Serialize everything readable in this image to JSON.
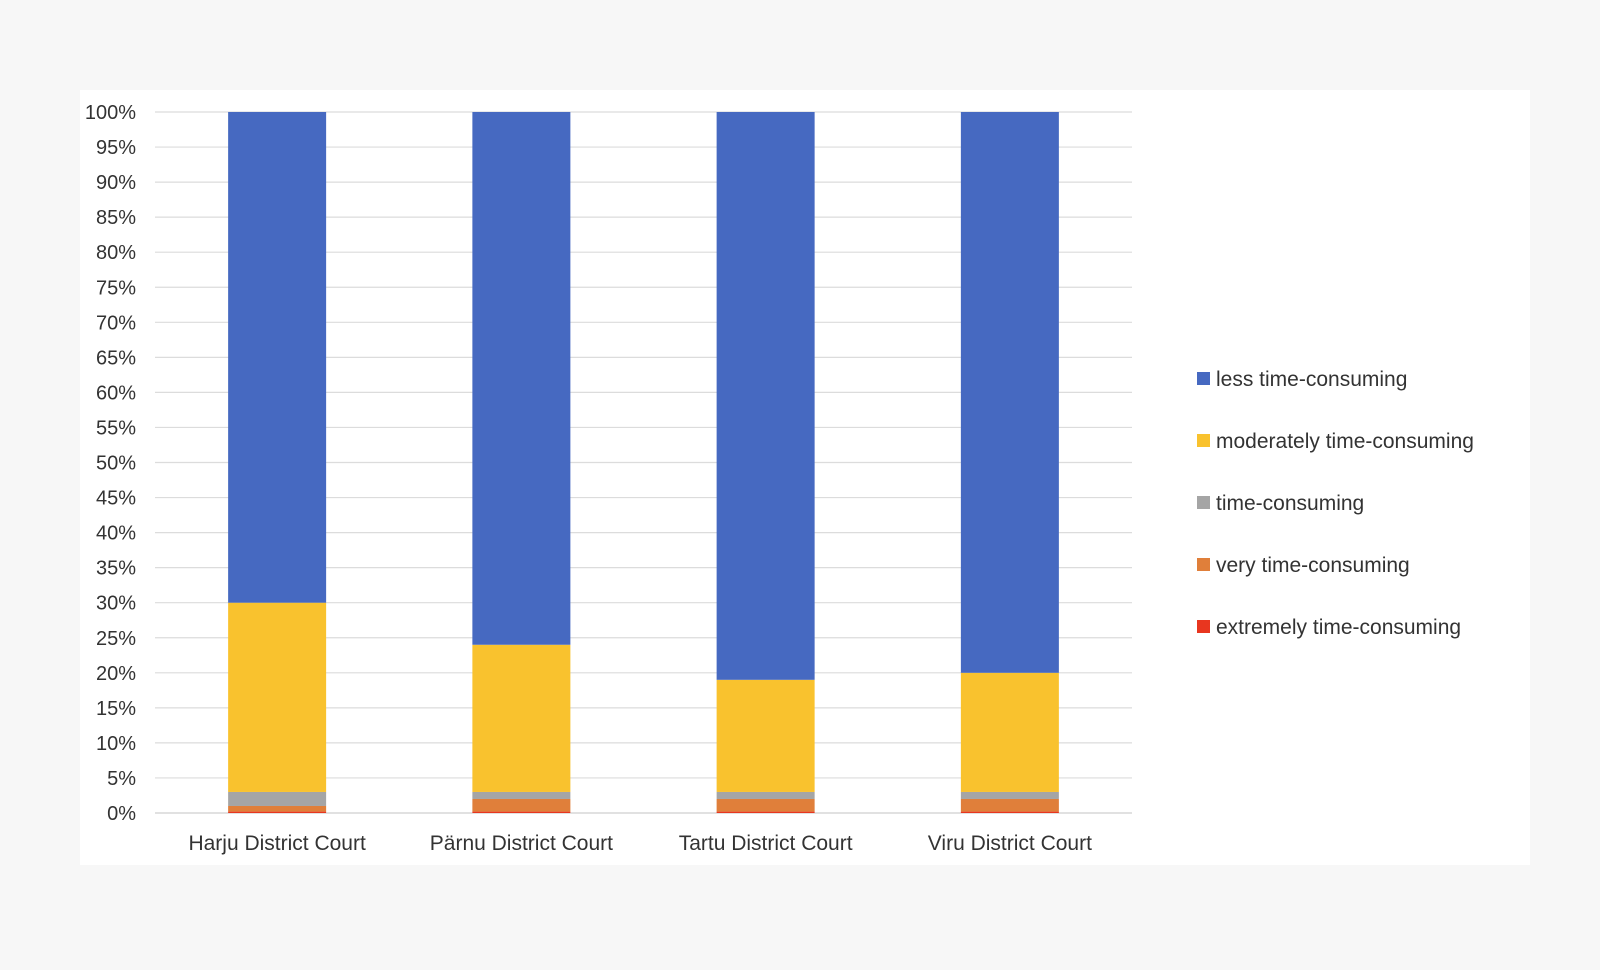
{
  "chart_data": {
    "type": "bar",
    "stacked": true,
    "title": "",
    "xlabel": "",
    "ylabel": "",
    "categories": [
      "Harju District Court",
      "Pärnu District Court",
      "Tartu District Court",
      "Viru District Court"
    ],
    "ylim": [
      0,
      100
    ],
    "y_ticks": [
      "0%",
      "5%",
      "10%",
      "15%",
      "20%",
      "25%",
      "30%",
      "35%",
      "40%",
      "45%",
      "50%",
      "55%",
      "60%",
      "65%",
      "70%",
      "75%",
      "80%",
      "85%",
      "90%",
      "95%",
      "100%"
    ],
    "grid": true,
    "legend_position": "right",
    "series": [
      {
        "name": "extremely time-consuming",
        "color": "#e8361f",
        "values": [
          0.2,
          0.2,
          0.2,
          0.2
        ]
      },
      {
        "name": "very time-consuming",
        "color": "#e07f3a",
        "values": [
          0.8,
          1.8,
          1.8,
          1.8
        ]
      },
      {
        "name": "time-consuming",
        "color": "#a5a5a5",
        "values": [
          2.0,
          1.0,
          1.0,
          1.0
        ]
      },
      {
        "name": "moderately time-consuming",
        "color": "#f9c22e",
        "values": [
          27.0,
          21.0,
          16.0,
          17.0
        ]
      },
      {
        "name": "less time-consuming",
        "color": "#4669c1",
        "values": [
          70.0,
          76.0,
          81.0,
          80.0
        ]
      }
    ],
    "legend_order": [
      "less time-consuming",
      "moderately time-consuming",
      "time-consuming",
      "very time-consuming",
      "extremely time-consuming"
    ]
  }
}
